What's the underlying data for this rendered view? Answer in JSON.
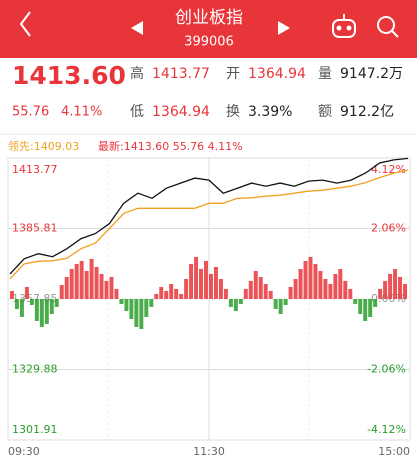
{
  "header": {
    "title": "创业板指",
    "code": "399006"
  },
  "quote": {
    "price": "1413.60",
    "change": "55.76",
    "change_pct": "4.11%",
    "stats": [
      {
        "label": "高",
        "value": "1413.77"
      },
      {
        "label": "开",
        "value": "1364.94"
      },
      {
        "label": "量",
        "value": "9147.2万"
      },
      {
        "label": "低",
        "value": "1364.94"
      },
      {
        "label": "换",
        "value": "3.39%"
      },
      {
        "label": "额",
        "value": "912.2亿"
      }
    ]
  },
  "chart": {
    "legend": {
      "lead": "领先:1409.03",
      "latest": "最新:1413.60 55.76 4.11%"
    },
    "left_axis": [
      1413.77,
      1385.81,
      1357.85,
      1329.88,
      1301.91
    ],
    "right_axis": [
      "4.12%",
      "2.06%",
      "0.00%",
      "-2.06%",
      "-4.12%"
    ],
    "time_axis": [
      "09:30",
      "11:30",
      "15:00"
    ],
    "price_line": [
      1367.8,
      1373.8,
      1375.8,
      1374.6,
      1377.8,
      1381.8,
      1383.8,
      1387.8,
      1395.8,
      1399.8,
      1397.8,
      1401.8,
      1403.8,
      1405.8,
      1405.0,
      1399.8,
      1401.8,
      1403.8,
      1402.6,
      1403.8,
      1402.6,
      1404.6,
      1405.0,
      1403.8,
      1405.0,
      1407.8,
      1411.8,
      1413.0,
      1413.6
    ],
    "lead_line": [
      1365.8,
      1371.8,
      1372.8,
      1373.0,
      1374.0,
      1377.8,
      1380.0,
      1385.8,
      1391.8,
      1393.8,
      1393.8,
      1393.8,
      1393.8,
      1393.8,
      1395.8,
      1395.8,
      1397.8,
      1398.0,
      1398.6,
      1399.0,
      1399.8,
      1400.6,
      1401.0,
      1401.8,
      1402.6,
      1404.0,
      1406.0,
      1407.8,
      1409.0
    ],
    "bars": [
      8,
      -10,
      -18,
      12,
      -6,
      -22,
      -28,
      -25,
      -15,
      -8,
      14,
      22,
      30,
      35,
      38,
      28,
      40,
      32,
      25,
      18,
      22,
      10,
      -5,
      -12,
      -20,
      -28,
      -30,
      -18,
      -8,
      5,
      12,
      8,
      15,
      10,
      5,
      20,
      35,
      42,
      30,
      38,
      25,
      32,
      20,
      10,
      -8,
      -12,
      -5,
      10,
      18,
      28,
      22,
      15,
      8,
      -10,
      -15,
      -6,
      12,
      20,
      30,
      38,
      42,
      35,
      28,
      20,
      15,
      25,
      30,
      18,
      10,
      -5,
      -15,
      -22,
      -18,
      -8,
      10,
      18,
      25,
      30,
      22,
      15
    ]
  }
}
